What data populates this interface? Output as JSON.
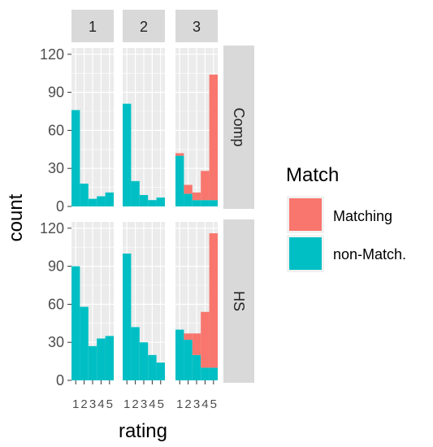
{
  "chart_data": {
    "type": "bar",
    "stacked": true,
    "faceted": true,
    "xlabel": "rating",
    "ylabel": "count",
    "ylim": [
      0,
      125
    ],
    "y_ticks": [
      "0",
      "30",
      "60",
      "90",
      "120"
    ],
    "x_ticks": [
      "1",
      "2",
      "3",
      "4",
      "5"
    ],
    "grid": true,
    "legend": {
      "title": "Match",
      "position": "right",
      "entries": [
        {
          "label": "Matching",
          "color": "#F8766D"
        },
        {
          "label": "non-Match.",
          "color": "#00BFC4"
        }
      ]
    },
    "column_facets": [
      "1",
      "2",
      "3"
    ],
    "row_facets": [
      "Comp",
      "HS"
    ],
    "colors": {
      "Matching": "#F8766D",
      "non-Match.": "#00BFC4",
      "strip": "#D9D9D9",
      "panel": "#EBEBEB"
    },
    "panels": [
      {
        "row": "Comp",
        "col": "1",
        "x": [
          1,
          2,
          3,
          4,
          5
        ],
        "non_match": [
          76,
          18,
          6,
          8,
          11
        ],
        "matching": [
          0,
          0,
          0,
          0,
          0
        ]
      },
      {
        "row": "Comp",
        "col": "2",
        "x": [
          1,
          2,
          3,
          4,
          5
        ],
        "non_match": [
          81,
          20,
          9,
          5,
          7
        ],
        "matching": [
          0,
          0,
          0,
          0,
          0
        ]
      },
      {
        "row": "Comp",
        "col": "3",
        "x": [
          1,
          2,
          3,
          4,
          5
        ],
        "non_match": [
          40,
          10,
          5,
          5,
          5
        ],
        "matching": [
          2,
          7,
          6,
          23,
          99
        ]
      },
      {
        "row": "HS",
        "col": "1",
        "x": [
          1,
          2,
          3,
          4,
          5
        ],
        "non_match": [
          90,
          58,
          27,
          33,
          35
        ],
        "matching": [
          0,
          0,
          0,
          0,
          0
        ]
      },
      {
        "row": "HS",
        "col": "2",
        "x": [
          1,
          2,
          3,
          4,
          5
        ],
        "non_match": [
          100,
          42,
          30,
          20,
          14
        ],
        "matching": [
          0,
          0,
          0,
          0,
          0
        ]
      },
      {
        "row": "HS",
        "col": "3",
        "x": [
          1,
          2,
          3,
          4,
          5
        ],
        "non_match": [
          40,
          32,
          20,
          10,
          10
        ],
        "matching": [
          0,
          5,
          17,
          44,
          106
        ]
      }
    ]
  }
}
